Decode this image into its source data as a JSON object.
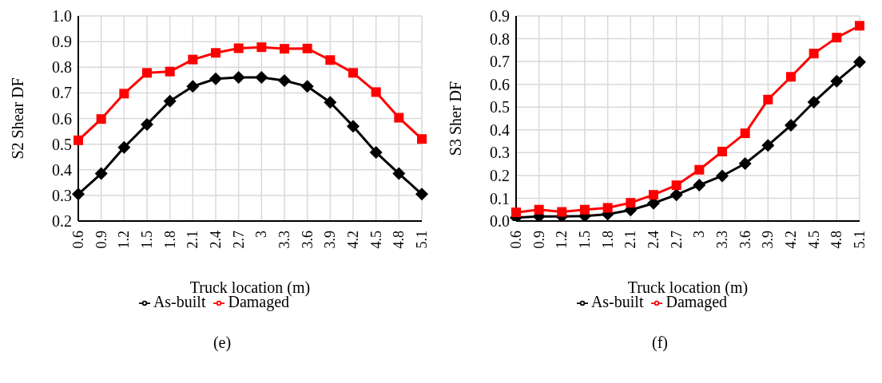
{
  "chart_data": [
    {
      "type": "line",
      "xlabel": "Truck location (m)",
      "ylabel": "S2 Shear DF",
      "annotations": [
        "(e)"
      ],
      "categories": [
        "0.6",
        "0.9",
        "1.2",
        "1.5",
        "1.8",
        "2.1",
        "2.4",
        "2.7",
        "3",
        "3.3",
        "3.6",
        "3.9",
        "4.2",
        "4.5",
        "4.8",
        "5.1"
      ],
      "series": [
        {
          "name": "As-built",
          "color": "#000000",
          "marker": "diamond",
          "values": [
            0.305,
            0.385,
            0.487,
            0.577,
            0.668,
            0.725,
            0.755,
            0.76,
            0.76,
            0.748,
            0.725,
            0.663,
            0.57,
            0.468,
            0.385,
            0.305
          ]
        },
        {
          "name": "Damaged",
          "color": "#ff0000",
          "marker": "square",
          "values": [
            0.515,
            0.598,
            0.697,
            0.778,
            0.783,
            0.83,
            0.856,
            0.874,
            0.878,
            0.872,
            0.873,
            0.828,
            0.778,
            0.703,
            0.603,
            0.52
          ]
        }
      ],
      "ylim": [
        0.2,
        1.0
      ],
      "yticks": [
        {
          "value": 0.2,
          "label": "0.2"
        },
        {
          "value": 0.3,
          "label": "0.3"
        },
        {
          "value": 0.4,
          "label": "0.4"
        },
        {
          "value": 0.5,
          "label": "0.5"
        },
        {
          "value": 0.6,
          "label": "0.6"
        },
        {
          "value": 0.7,
          "label": "0.7"
        },
        {
          "value": 0.8,
          "label": "0.8"
        },
        {
          "value": 0.9,
          "label": "0.9"
        },
        {
          "value": 1.0,
          "label": "1.0"
        }
      ],
      "grid": true,
      "legend": "bottom",
      "line_style": "solid"
    },
    {
      "type": "line",
      "xlabel": "Truck location (m)",
      "ylabel": "S3 Sher DF",
      "annotations": [
        "(f)"
      ],
      "categories": [
        "0.6",
        "0.9",
        "1.2",
        "1.5",
        "1.8",
        "2.1",
        "2.4",
        "2.7",
        "3",
        "3.3",
        "3.6",
        "3.9",
        "4.2",
        "4.5",
        "4.8",
        "5.1"
      ],
      "series": [
        {
          "name": "As-built",
          "color": "#000000",
          "marker": "diamond",
          "values": [
            0.015,
            0.02,
            0.02,
            0.022,
            0.03,
            0.048,
            0.078,
            0.115,
            0.158,
            0.198,
            0.252,
            0.332,
            0.42,
            0.522,
            0.614,
            0.698
          ]
        },
        {
          "name": "Damaged",
          "color": "#ff0000",
          "marker": "square",
          "values": [
            0.038,
            0.05,
            0.04,
            0.05,
            0.058,
            0.08,
            0.115,
            0.157,
            0.225,
            0.305,
            0.385,
            0.533,
            0.633,
            0.735,
            0.805,
            0.857
          ]
        }
      ],
      "ylim": [
        0.0,
        0.9
      ],
      "yticks": [
        {
          "value": 0.0,
          "label": "0.0"
        },
        {
          "value": 0.1,
          "label": "0.1"
        },
        {
          "value": 0.2,
          "label": "0.2"
        },
        {
          "value": 0.3,
          "label": "0.3"
        },
        {
          "value": 0.4,
          "label": "0.4"
        },
        {
          "value": 0.5,
          "label": "0.5"
        },
        {
          "value": 0.6,
          "label": "0.6"
        },
        {
          "value": 0.7,
          "label": "0.7"
        },
        {
          "value": 0.8,
          "label": "0.8"
        },
        {
          "value": 0.9,
          "label": "0.9"
        }
      ],
      "grid": true,
      "legend": "bottom",
      "line_style": "solid"
    }
  ]
}
